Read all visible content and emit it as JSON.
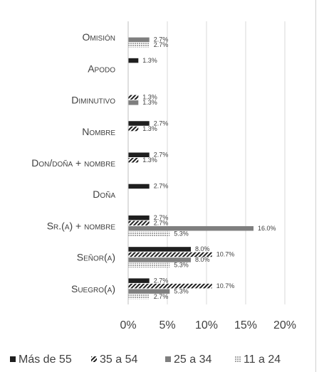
{
  "chart_data": {
    "type": "bar",
    "orientation": "horizontal",
    "categories": [
      "Omisión",
      "Apodo",
      "Diminutivo",
      "Nombre",
      "Don/doña + nombre",
      "Doña",
      "Sr.(a) + nombre",
      "Señor(a)",
      "Suegro(a)"
    ],
    "series": [
      {
        "name": "Más de 55",
        "values": [
          null,
          1.3,
          null,
          2.7,
          2.7,
          2.7,
          2.7,
          8.0,
          2.7
        ],
        "color": "#1f1f1f",
        "pattern": "solid"
      },
      {
        "name": "35 a 54",
        "values": [
          null,
          null,
          1.3,
          1.3,
          1.3,
          null,
          2.7,
          10.7,
          10.7
        ],
        "color": "#1f1f1f",
        "pattern": "diagonal-hatch"
      },
      {
        "name": "25 a 34",
        "values": [
          2.7,
          null,
          1.3,
          null,
          null,
          null,
          16.0,
          8.0,
          5.3
        ],
        "color": "#7f7f7f",
        "pattern": "solid"
      },
      {
        "name": "11 a 24",
        "values": [
          2.7,
          null,
          null,
          null,
          null,
          null,
          5.3,
          5.3,
          2.7
        ],
        "color": "#a6a6a6",
        "pattern": "dotted"
      }
    ],
    "data_labels": [
      [
        "",
        "",
        "2.7%",
        "2.7%"
      ],
      [
        "1.3%",
        "",
        "",
        ""
      ],
      [
        "",
        "1.3%",
        "1.3%",
        ""
      ],
      [
        "2.7%",
        "1.3%",
        "",
        ""
      ],
      [
        "2.7%",
        "1.3%",
        "",
        ""
      ],
      [
        "2.7%",
        "",
        "",
        ""
      ],
      [
        "2.7%",
        "2.7%",
        "16.0%",
        "5.3%"
      ],
      [
        "8.0%",
        "10.7%",
        "8.0%",
        "5.3%"
      ],
      [
        "2.7%",
        "10.7%",
        "5.3%",
        "2.7%"
      ]
    ],
    "x_ticks": [
      "0%",
      "5%",
      "10%",
      "15%",
      "20%"
    ],
    "xlim": [
      0,
      20
    ],
    "grid": true,
    "legend_position": "bottom"
  }
}
